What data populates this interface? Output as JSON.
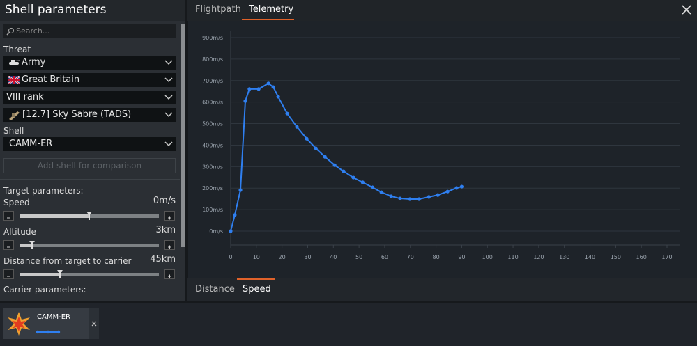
{
  "header": {
    "title": "Shell parameters"
  },
  "search": {
    "placeholder": "Search..."
  },
  "threat": {
    "label": "Threat",
    "selects": [
      "Army",
      "Great Britain",
      "VIII rank",
      "[12.7] Sky Sabre (TADS)"
    ]
  },
  "shell": {
    "label": "Shell",
    "select": "CAMM-ER",
    "compare_button": "Add shell for comparison"
  },
  "target_parameters": {
    "label": "Target parameters:",
    "sliders": [
      {
        "label": "Speed",
        "value": "0m/s"
      },
      {
        "label": "Altitude",
        "value": "3km"
      },
      {
        "label": "Distance from target to carrier",
        "value": "45km"
      }
    ]
  },
  "carrier_parameters": {
    "label": "Carrier parameters:"
  },
  "tabs": [
    "Flightpath",
    "Telemetry"
  ],
  "bottom_tabs": [
    "Distance",
    "Speed"
  ],
  "shell_card": {
    "name": "CAMM-ER"
  },
  "chart_data": {
    "type": "line",
    "x": [
      0,
      1.6,
      3.8,
      5.7,
      7.3,
      10.9,
      14.7,
      16.6,
      18.5,
      22,
      25.8,
      29.6,
      33.2,
      36.7,
      40.5,
      44,
      47.8,
      51.4,
      55.2,
      58.7,
      62.5,
      66,
      69.8,
      73.4,
      77.2,
      80.7,
      84.5,
      88,
      90
    ],
    "series": [
      {
        "name": "CAMM-ER",
        "color": "#2f7ff0",
        "values": [
          0,
          75,
          191,
          605,
          661,
          661,
          687,
          670,
          625,
          547,
          485,
          430,
          385,
          346,
          307,
          278,
          249,
          227,
          204,
          181,
          162,
          152,
          149,
          149,
          159,
          168,
          184,
          201,
          207
        ]
      }
    ],
    "xlim": [
      0,
      170
    ],
    "xticks": [
      0,
      10,
      20,
      30,
      40,
      50,
      60,
      70,
      80,
      90,
      100,
      110,
      120,
      130,
      140,
      150,
      160,
      170
    ],
    "ylim": [
      0,
      900
    ],
    "yticks": [
      {
        "value": 0,
        "label": "0m/s"
      },
      {
        "value": 100,
        "label": "100m/s"
      },
      {
        "value": 200,
        "label": "200m/s"
      },
      {
        "value": 300,
        "label": "300m/s"
      },
      {
        "value": 400,
        "label": "400m/s"
      },
      {
        "value": 500,
        "label": "500m/s"
      },
      {
        "value": 600,
        "label": "600m/s"
      },
      {
        "value": 700,
        "label": "700m/s"
      },
      {
        "value": 800,
        "label": "800m/s"
      },
      {
        "value": 900,
        "label": "900m/s"
      }
    ],
    "grid": true
  }
}
